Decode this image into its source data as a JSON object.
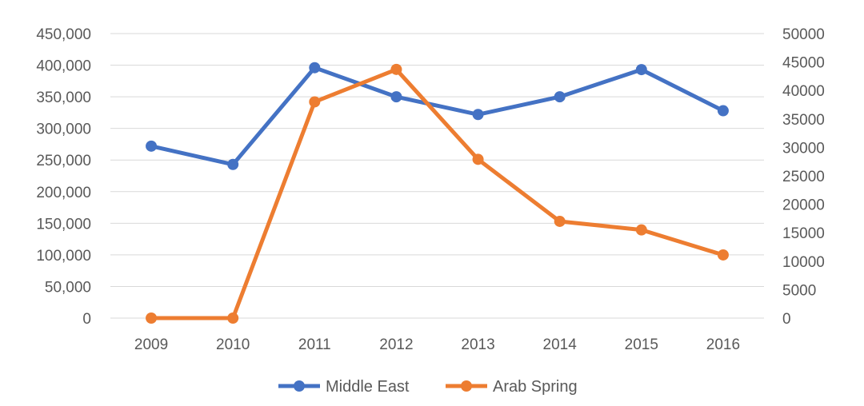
{
  "chart_data": {
    "type": "line",
    "title": "",
    "xlabel": "",
    "ylabel": "",
    "categories": [
      "2009",
      "2010",
      "2011",
      "2012",
      "2013",
      "2014",
      "2015",
      "2016"
    ],
    "y_left": {
      "range": [
        0,
        450000
      ],
      "ticks": [
        0,
        50000,
        100000,
        150000,
        200000,
        250000,
        300000,
        350000,
        400000,
        450000
      ],
      "tick_labels": [
        "0",
        "50,000",
        "100,000",
        "150,000",
        "200,000",
        "250,000",
        "300,000",
        "350,000",
        "400,000",
        "450,000"
      ]
    },
    "y_right": {
      "range": [
        0,
        50000
      ],
      "ticks": [
        0,
        5000,
        10000,
        15000,
        20000,
        25000,
        30000,
        35000,
        40000,
        45000,
        50000
      ],
      "tick_labels": [
        "0",
        "5000",
        "10000",
        "15000",
        "20000",
        "25000",
        "30000",
        "35000",
        "40000",
        "45000",
        "50000"
      ]
    },
    "series": [
      {
        "name": "Middle East",
        "axis": "left",
        "color": "#4472C4",
        "values": [
          272000,
          243000,
          396000,
          350000,
          322000,
          350000,
          393000,
          328000
        ]
      },
      {
        "name": "Arab Spring",
        "axis": "right",
        "color": "#ED7D31",
        "values": [
          0,
          0,
          38000,
          43700,
          27900,
          17000,
          15500,
          11100
        ]
      }
    ],
    "grid": true,
    "legend_position": "bottom"
  }
}
